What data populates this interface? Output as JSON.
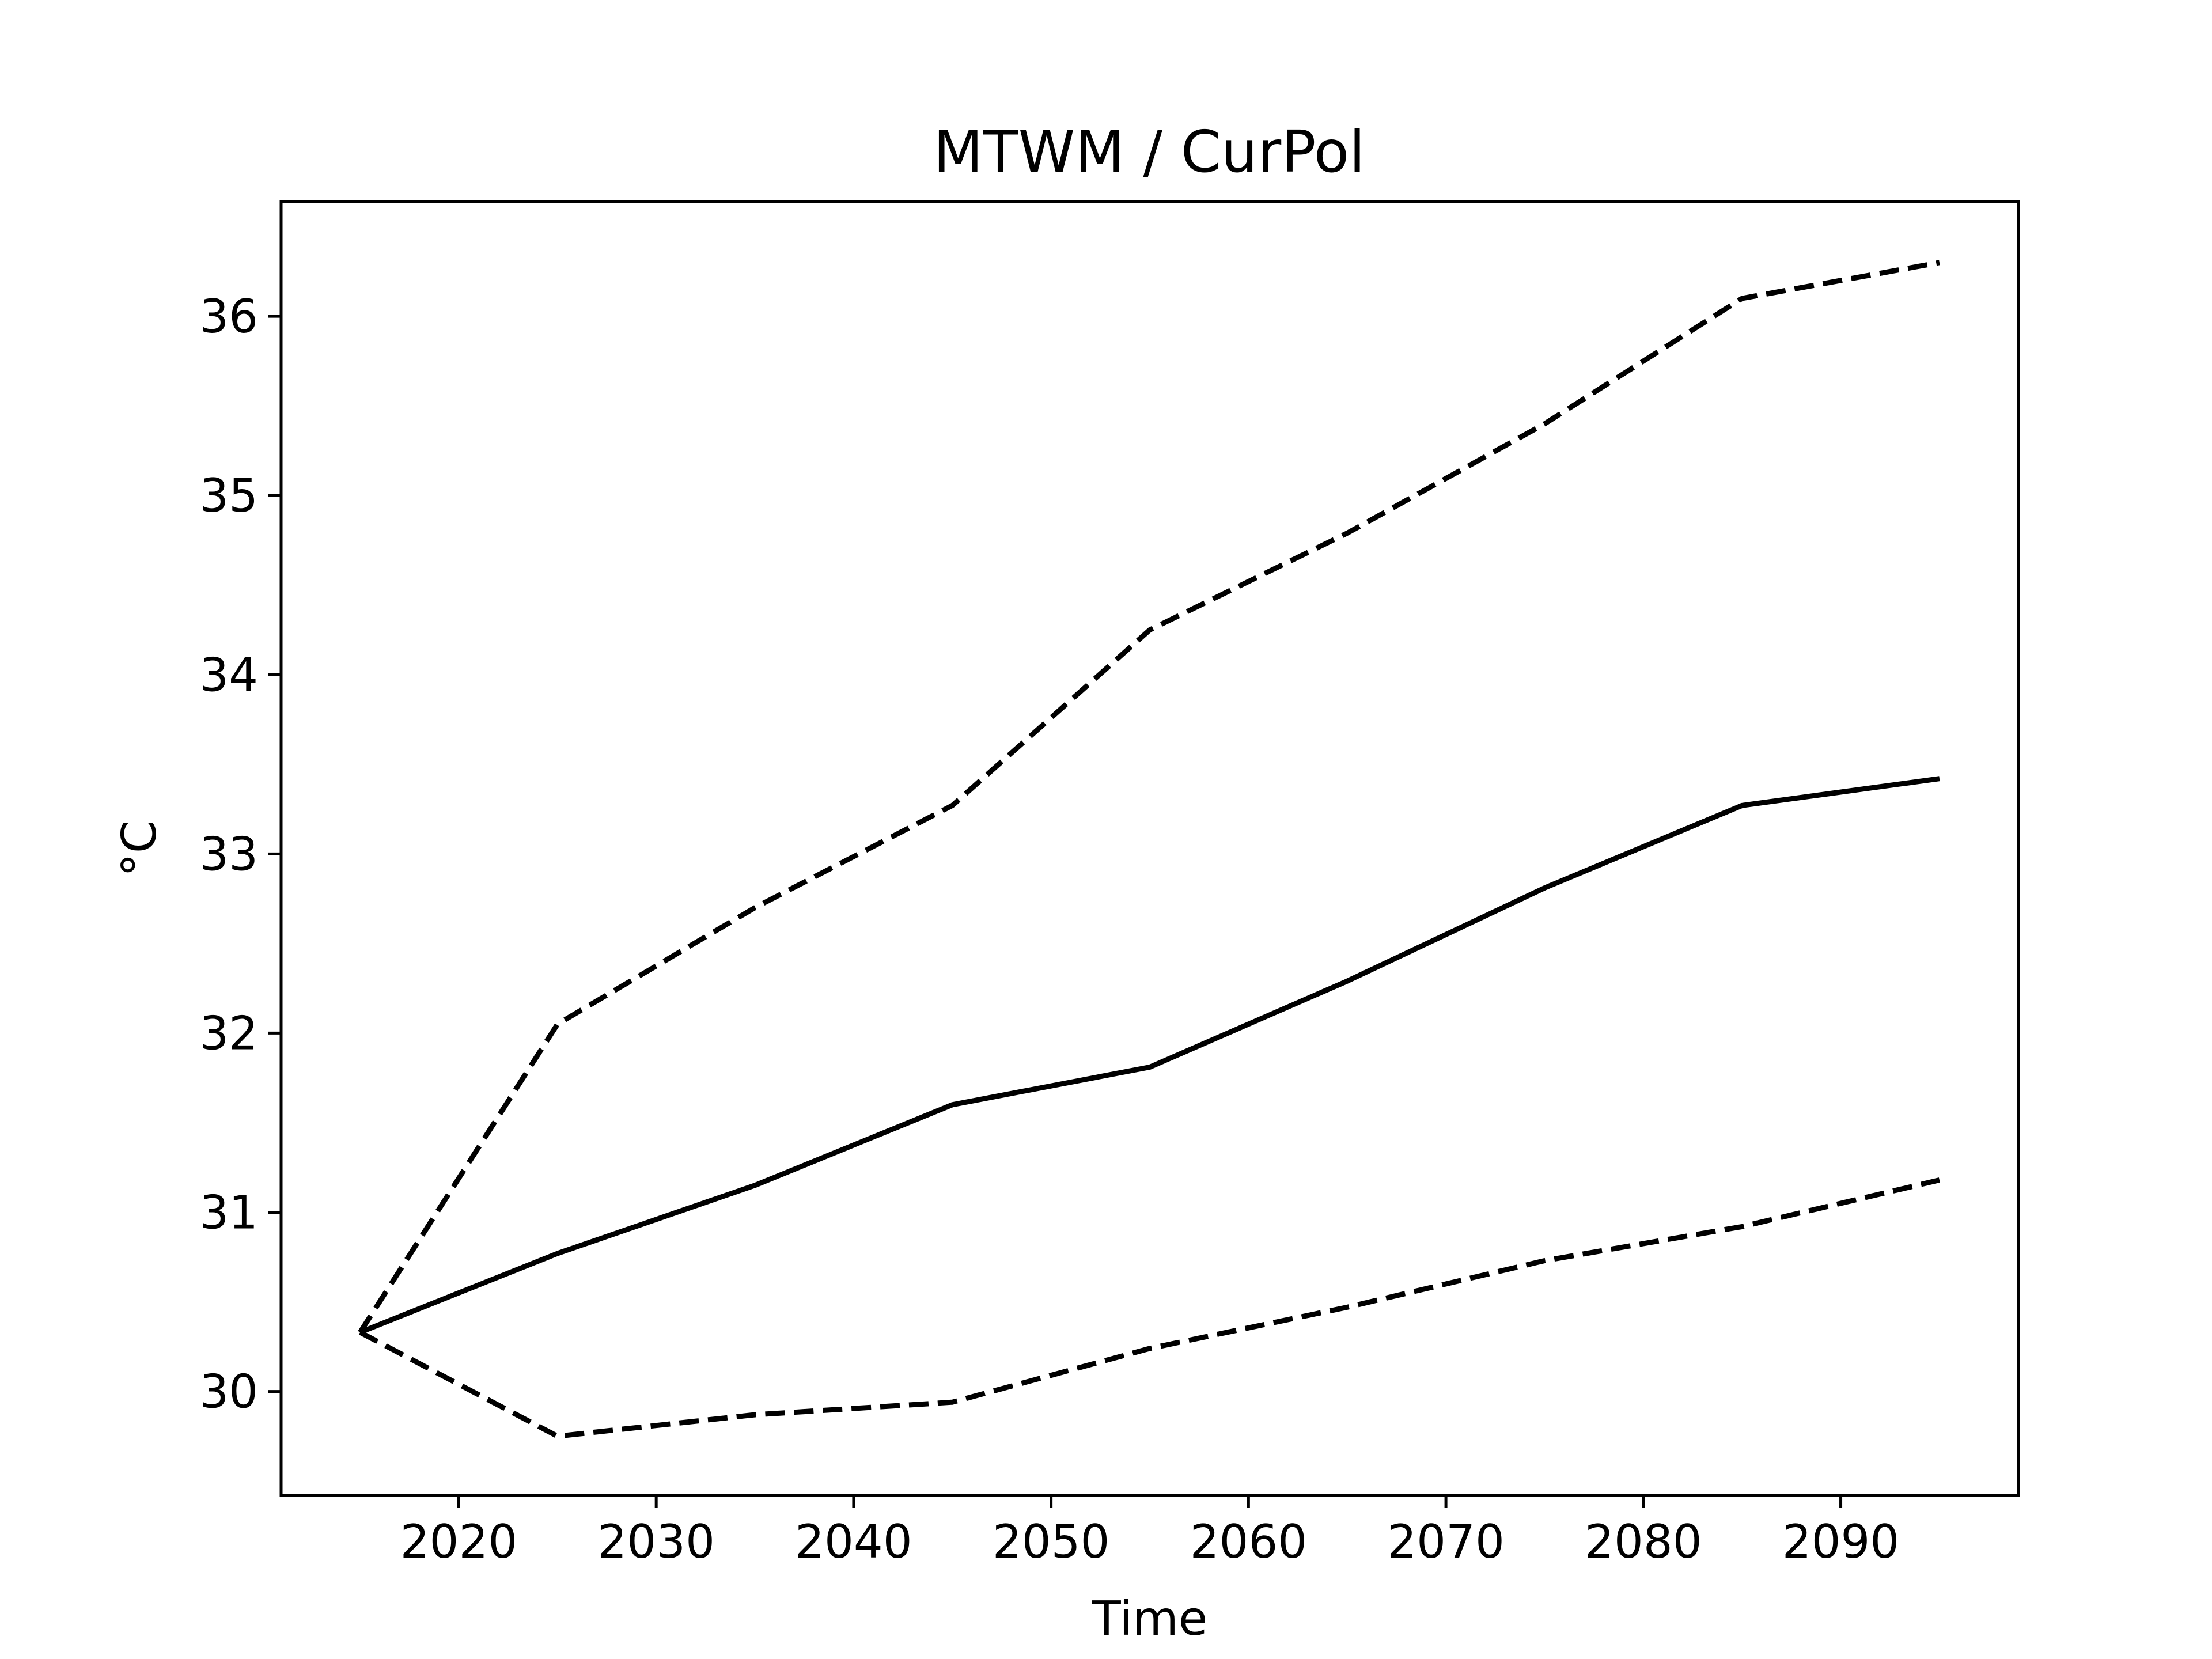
{
  "chart_data": {
    "type": "line",
    "title": "MTWM / CurPol",
    "xlabel": "Time",
    "ylabel": "°C",
    "xlim": [
      2011,
      2099
    ],
    "ylim": [
      29.42,
      36.64
    ],
    "x_ticks": [
      2020,
      2030,
      2040,
      2050,
      2060,
      2070,
      2080,
      2090
    ],
    "y_ticks": [
      30,
      31,
      32,
      33,
      34,
      35,
      36
    ],
    "grid": false,
    "x": [
      2015,
      2025,
      2035,
      2045,
      2055,
      2065,
      2075,
      2085,
      2095
    ],
    "series": [
      {
        "style": "dashed",
        "color": "#000000",
        "values": [
          30.33,
          32.05,
          32.7,
          33.27,
          34.25,
          34.79,
          35.4,
          36.1,
          36.3
        ]
      },
      {
        "style": "solid",
        "color": "#000000",
        "values": [
          30.33,
          30.77,
          31.15,
          31.6,
          31.81,
          32.29,
          32.81,
          33.27,
          33.42
        ]
      },
      {
        "style": "dashed",
        "color": "#000000",
        "values": [
          30.33,
          29.75,
          29.87,
          29.94,
          30.24,
          30.47,
          30.73,
          30.92,
          31.18
        ]
      }
    ]
  }
}
